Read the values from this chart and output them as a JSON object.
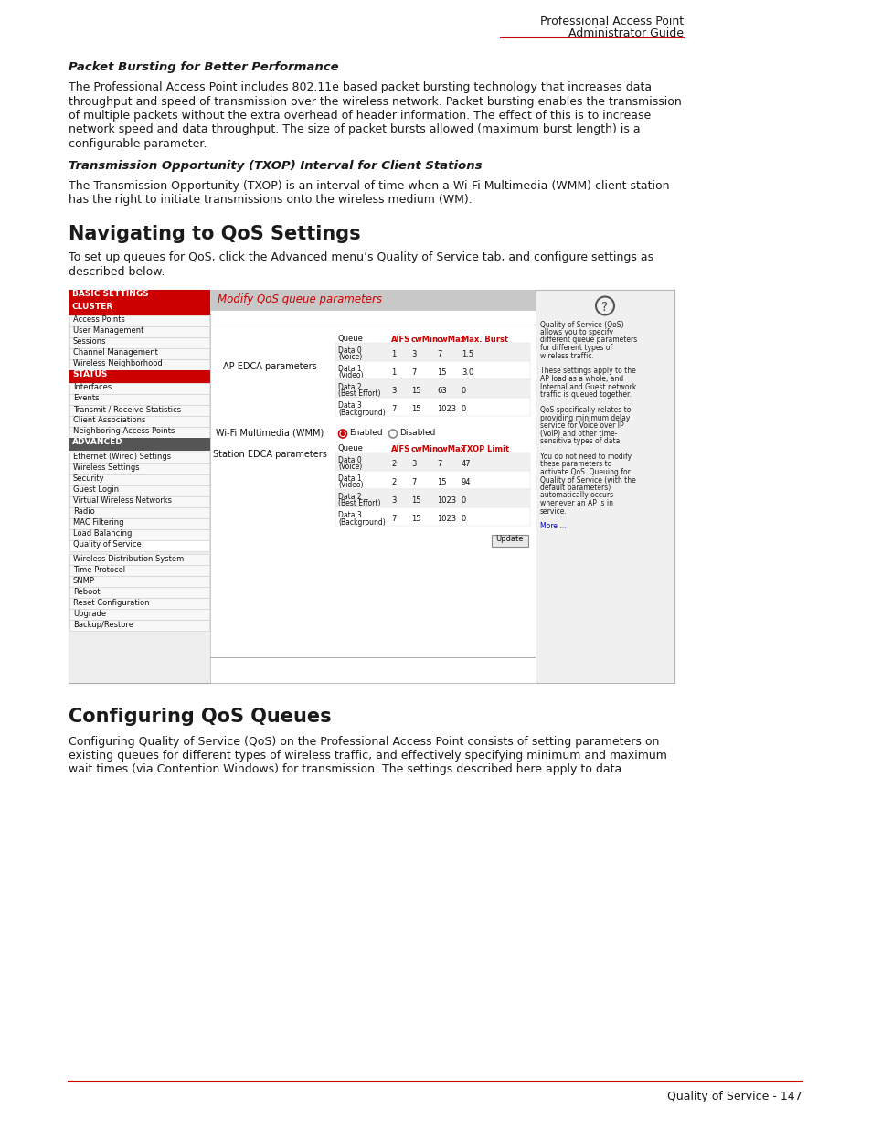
{
  "header_line1": "Professional Access Point",
  "header_line2": "Administrator Guide",
  "red_color": "#cc0000",
  "footer_text": "Quality of Service - 147",
  "bg_color": "#ffffff",
  "section1_title": "Packet Bursting for Better Performance",
  "section2_title": "Transmission Opportunity (TXOP) Interval for Client Stations",
  "nav_heading": "Navigating to QoS Settings",
  "config_heading": "Configuring QoS Queues",
  "panel_title": "Modify QoS queue parameters",
  "panel_title_color": "#cc0000",
  "sidebar_cluster_items": [
    "Access Points",
    "User Management",
    "Sessions",
    "Channel Management",
    "Wireless Neighborhood"
  ],
  "sidebar_status_items": [
    "Interfaces",
    "Events",
    "Transmit / Receive Statistics",
    "Client Associations",
    "Neighboring Access Points"
  ],
  "sidebar_advanced_items": [
    "Ethernet (Wired) Settings",
    "Wireless Settings",
    "Security",
    "Guest Login",
    "Virtual Wireless Networks",
    "Radio",
    "MAC Filtering",
    "Load Balancing",
    "Quality of Service",
    "",
    "Wireless Distribution System",
    "Time Protocol",
    "SNMP",
    "Reboot",
    "Reset Configuration",
    "Upgrade",
    "Backup/Restore"
  ],
  "help_text": [
    "Quality of Service (QoS)",
    "allows you to specify",
    "different queue parameters",
    "for different types of",
    "wireless traffic.",
    "",
    "These settings apply to the",
    "AP load as a whole, and",
    "Internal and Guest network",
    "traffic is queued together.",
    "",
    "QoS specifically relates to",
    "providing minimum delay",
    "service for Voice over IP",
    "(VoIP) and other time-",
    "sensitive types of data.",
    "",
    "You do not need to modify",
    "these parameters to",
    "activate QoS. Queuing for",
    "Quality of Service (with the",
    "default parameters)",
    "automatically occurs",
    "whenever an AP is in",
    "service.",
    "",
    "More ..."
  ]
}
